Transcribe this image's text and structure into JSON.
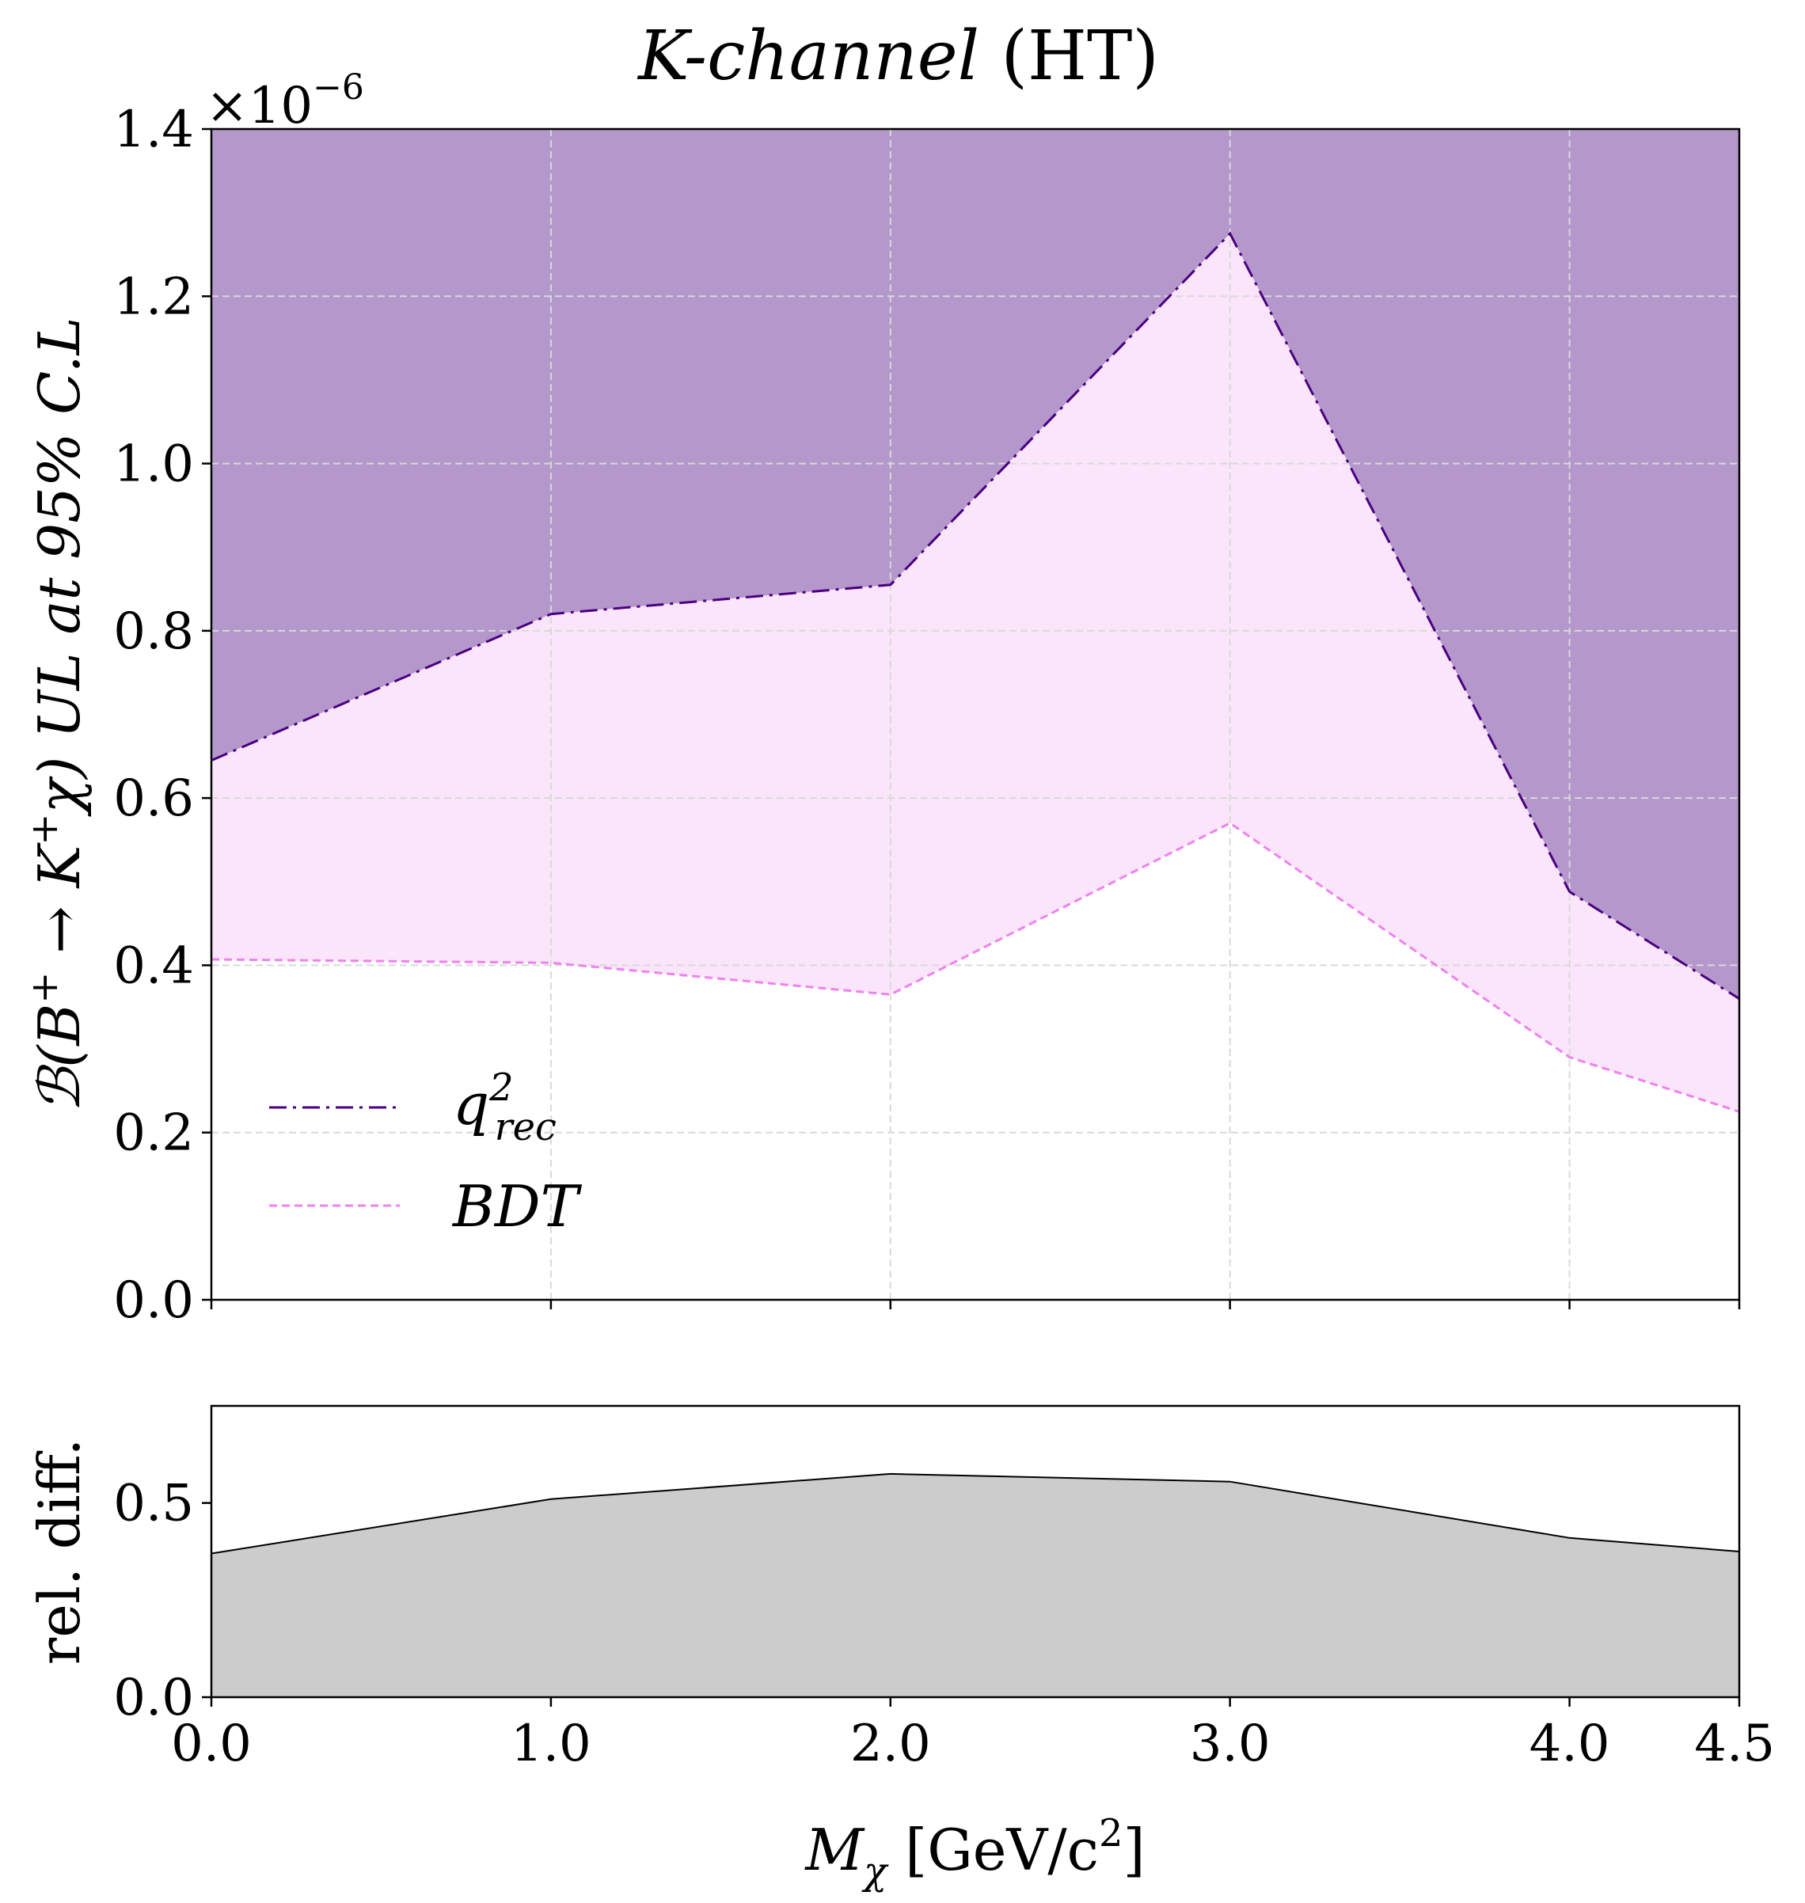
{
  "chart_data": [
    {
      "type": "line",
      "title_main": "K-channel",
      "title_suffix": " (HT)",
      "ylabel_part1": "ℬ(B",
      "ylabel_sup1": "+",
      "ylabel_part2": " → K",
      "ylabel_sup2": "+",
      "ylabel_part3": "χ) UL at 95% C.L",
      "y_multiplier_base": "×10",
      "y_multiplier_exp": "−6",
      "x_ticks": [
        "0.0",
        "1.0",
        "2.0",
        "3.0",
        "4.0",
        "4.5"
      ],
      "y_ticks": [
        "0.0",
        "0.2",
        "0.4",
        "0.6",
        "0.8",
        "1.0",
        "1.2",
        "1.4"
      ],
      "xlim": [
        0,
        4.5
      ],
      "ylim": [
        0,
        1.4
      ],
      "grid": true,
      "legend_position": "lower-left",
      "x": [
        0.0,
        1.0,
        2.0,
        3.0,
        4.0,
        4.5
      ],
      "series": [
        {
          "name_base": "q",
          "name_sup": "2",
          "name_sub": "rec",
          "color": "#4b0082",
          "style": "dash-dot",
          "values": [
            0.645,
            0.82,
            0.855,
            1.275,
            0.488,
            0.36
          ]
        },
        {
          "name_base": "BDT",
          "color": "#ee82ee",
          "style": "dashed",
          "values": [
            0.407,
            0.403,
            0.365,
            0.57,
            0.29,
            0.225
          ]
        }
      ],
      "fill_above_color": "#b497cb",
      "fill_between_color": "#fbe5fa"
    },
    {
      "type": "area",
      "ylabel": "rel. diff.",
      "xlabel_var": "M",
      "xlabel_sub": "χ",
      "xlabel_unit": " [GeV/c",
      "xlabel_unit_sup": "2",
      "xlabel_close": "]",
      "x_ticks": [
        "0.0",
        "1.0",
        "2.0",
        "3.0",
        "4.0",
        "4.5"
      ],
      "y_ticks": [
        "0.0",
        "0.5"
      ],
      "xlim": [
        0,
        4.5
      ],
      "ylim": [
        0,
        0.75
      ],
      "grid": false,
      "x": [
        0.0,
        1.0,
        2.0,
        3.0,
        4.0,
        4.5
      ],
      "values": [
        0.37,
        0.51,
        0.575,
        0.555,
        0.41,
        0.375
      ],
      "fill_color": "#cccccc"
    }
  ]
}
